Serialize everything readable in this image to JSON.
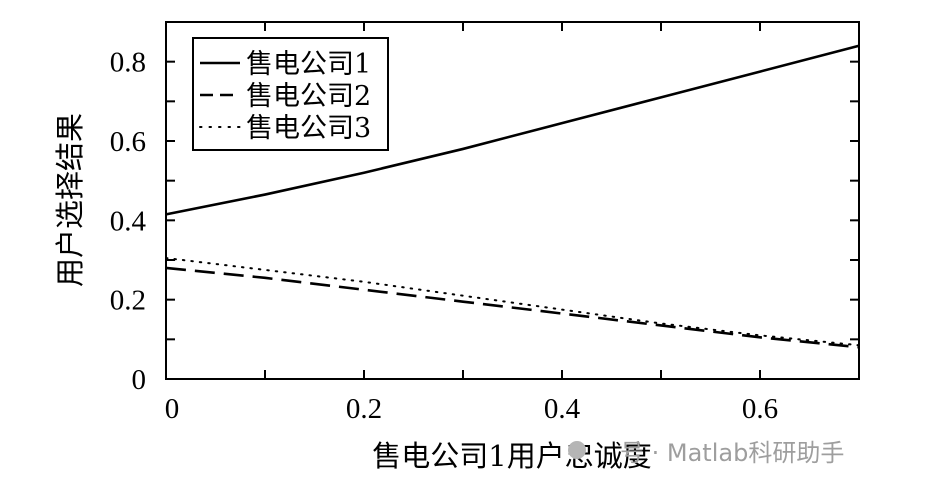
{
  "chart_data": {
    "type": "line",
    "title": "",
    "xlabel": "售电公司1用户忠诚度",
    "ylabel": "用户选择结果",
    "xlim": [
      0,
      0.7
    ],
    "ylim": [
      0,
      0.9
    ],
    "xticks": [
      0,
      0.2,
      0.4,
      0.6
    ],
    "xtick_labels": [
      "0",
      "0.2",
      "0.4",
      "0.6"
    ],
    "xminor": [
      0.1,
      0.3,
      0.5
    ],
    "yticks": [
      0,
      0.2,
      0.4,
      0.6,
      0.8
    ],
    "ytick_labels": [
      "0",
      "0.2",
      "0.4",
      "0.6",
      "0.8"
    ],
    "yminor": [
      0.1,
      0.3,
      0.5,
      0.7
    ],
    "grid": false,
    "legend_position": "upper left",
    "x": [
      0,
      0.1,
      0.2,
      0.3,
      0.4,
      0.5,
      0.6,
      0.7
    ],
    "series": [
      {
        "name": "售电公司1",
        "style": "solid",
        "values": [
          0.415,
          0.465,
          0.52,
          0.58,
          0.645,
          0.71,
          0.775,
          0.84
        ]
      },
      {
        "name": "售电公司2",
        "style": "dashed",
        "values": [
          0.28,
          0.255,
          0.225,
          0.195,
          0.165,
          0.135,
          0.105,
          0.08
        ]
      },
      {
        "name": "售电公司3",
        "style": "dotted",
        "values": [
          0.305,
          0.275,
          0.245,
          0.21,
          0.175,
          0.14,
          0.11,
          0.085
        ]
      }
    ]
  },
  "watermark": {
    "text": "号 · Matlab科研助手"
  }
}
